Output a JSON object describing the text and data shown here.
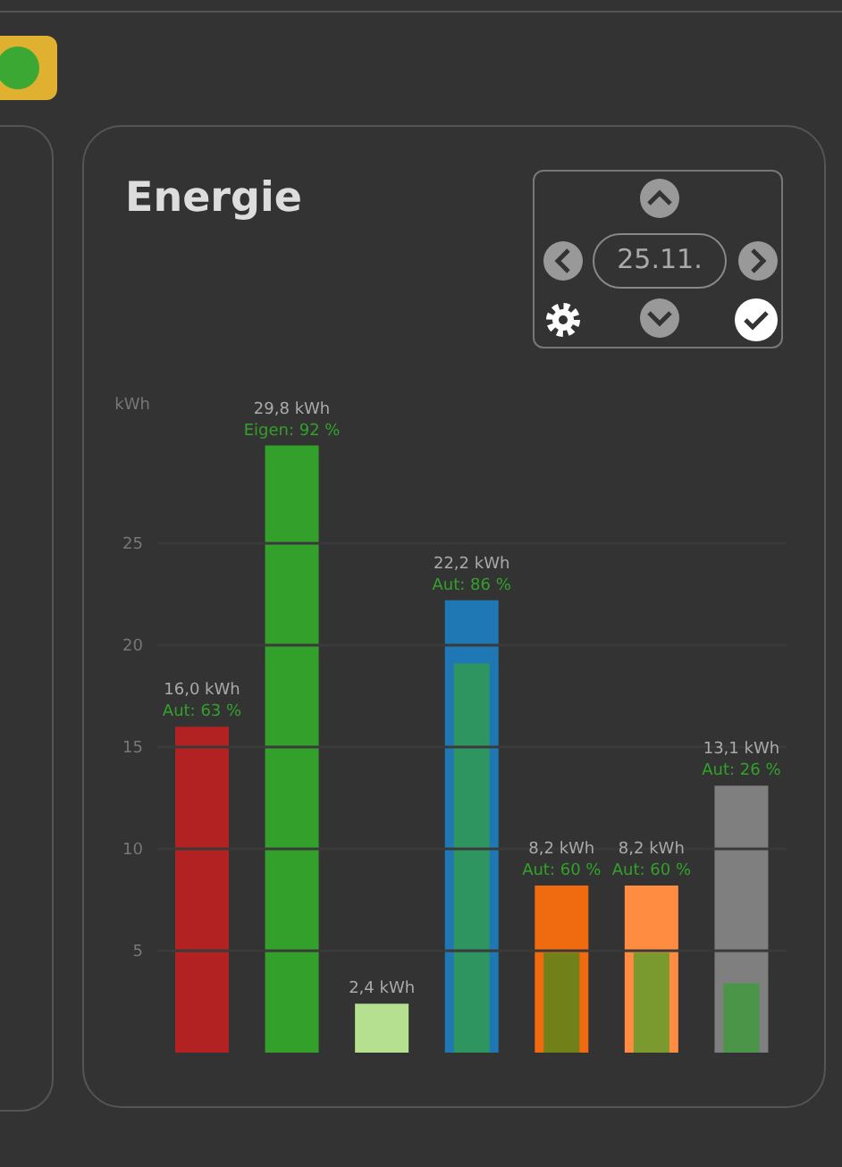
{
  "chart_data": {
    "type": "bar",
    "title": "Energie",
    "ylabel": "kWh",
    "annotations": [
      "25.11."
    ],
    "categories": [
      null,
      null,
      null,
      null,
      null,
      null,
      null
    ],
    "series": [
      {
        "values": [
          16.0,
          29.8,
          2.4,
          22.2,
          8.2,
          8.2,
          13.1
        ],
        "colors": [
          "#b22222",
          "#33a02c",
          "#b5e08f",
          "#1f78b4",
          "#f06a10",
          "#ff8c40",
          "#7f7f7f"
        ],
        "value_labels": [
          "16,0 kWh\nAut: 63 %",
          "29,8 kWh\nEigen: 92 %",
          "2,4 kWh",
          "22,2 kWh\nAut: 86 %",
          "8,2 kWh\nAut: 60 %",
          "8,2 kWh\nAut: 60 %",
          "13,1 kWh\nAut: 26 %"
        ]
      },
      {
        "values": [
          null,
          null,
          null,
          19.1,
          4.9,
          4.9,
          3.4
        ],
        "colors": [
          "#2e9460",
          "#2e9460",
          "#2e9460",
          "#2e9460",
          "#72801a",
          "#7a9a30",
          "#4a9548"
        ]
      }
    ],
    "ylim": [
      0,
      30
    ],
    "yticks": [
      5,
      10,
      15,
      20,
      25
    ],
    "grid": "y"
  }
}
